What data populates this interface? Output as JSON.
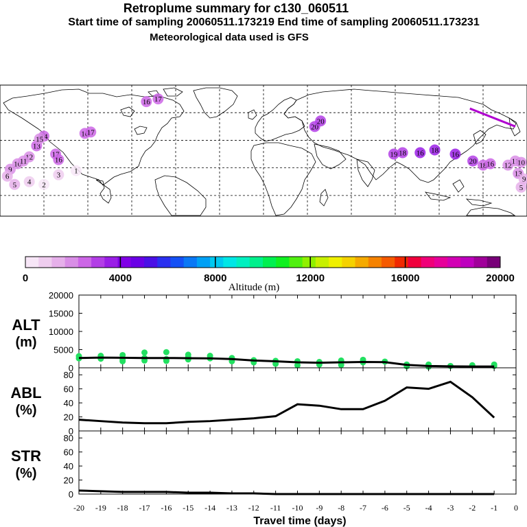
{
  "header": {
    "title": "Retroplume summary for c130_060511",
    "sampling": "Start time of sampling 20060511.173219     End time of sampling 20060511.173231",
    "met": "Meteorological data used is GFS"
  },
  "colorbar": {
    "label": "Altitude (m)",
    "ticks": [
      "0",
      "4000",
      "8000",
      "12000",
      "16000",
      "20000"
    ],
    "colors": [
      "#f7e6f7",
      "#efcdef",
      "#e6b0ea",
      "#d98ee6",
      "#cc66e6",
      "#b33ee6",
      "#9a1ee6",
      "#8000e6",
      "#6a00e6",
      "#4a10e6",
      "#2a30f0",
      "#1450f5",
      "#0a78f5",
      "#00a0f5",
      "#00c8f0",
      "#00e6e6",
      "#00f0c0",
      "#00f08c",
      "#00f050",
      "#10f020",
      "#50f010",
      "#90f000",
      "#c8f000",
      "#f0f000",
      "#f5d200",
      "#f5aa00",
      "#f58200",
      "#f55a00",
      "#f02800",
      "#f0003c",
      "#f00078",
      "#e6009a",
      "#d200b4",
      "#be00be",
      "#a0009a",
      "#780078"
    ]
  },
  "map": {
    "plumes": [
      {
        "label": "16",
        "lon": -122,
        "lat": 55,
        "alt": 2300
      },
      {
        "label": "17",
        "lon": -118,
        "lat": 56,
        "alt": 2400
      },
      {
        "label": "14",
        "lon": -150,
        "lat": 53,
        "alt": 2600
      },
      {
        "label": "13",
        "lon": -155,
        "lat": 46,
        "alt": 2400
      },
      {
        "label": "15",
        "lon": -153,
        "lat": 51,
        "alt": 2200
      },
      {
        "label": "17",
        "lon": -142,
        "lat": 40,
        "alt": 2500
      },
      {
        "label": "16",
        "lon": -140,
        "lat": 36,
        "alt": 2300
      },
      {
        "label": "12",
        "lon": -160,
        "lat": 38,
        "alt": 2200
      },
      {
        "label": "10",
        "lon": -168,
        "lat": 33,
        "alt": 2000
      },
      {
        "label": "9",
        "lon": -173,
        "lat": 29,
        "alt": 1900
      },
      {
        "label": "11",
        "lon": -164,
        "lat": 35,
        "alt": 2000
      },
      {
        "label": "6",
        "lon": -175,
        "lat": 24,
        "alt": 1500
      },
      {
        "label": "5",
        "lon": -170,
        "lat": 18,
        "alt": 1200
      },
      {
        "label": "4",
        "lon": -160,
        "lat": 20,
        "alt": 900
      },
      {
        "label": "3",
        "lon": -140,
        "lat": 25,
        "alt": 700
      },
      {
        "label": "2",
        "lon": -150,
        "lat": 18,
        "alt": 500
      },
      {
        "label": "1",
        "lon": -128,
        "lat": 28,
        "alt": 400
      },
      {
        "label": "16",
        "lon": -80,
        "lat": 78,
        "alt": 2300
      },
      {
        "label": "17",
        "lon": -72,
        "lat": 80,
        "alt": 2400
      },
      {
        "label": "20",
        "lon": 35,
        "lat": 60,
        "alt": 2900
      },
      {
        "label": "20",
        "lon": 39,
        "lat": 64,
        "alt": 2800
      },
      {
        "label": "19",
        "lon": 89,
        "lat": 40,
        "alt": 3200
      },
      {
        "label": "18",
        "lon": 95,
        "lat": 41,
        "alt": 3300
      },
      {
        "label": "16",
        "lon": 107,
        "lat": 41,
        "alt": 3400
      },
      {
        "label": "18",
        "lon": 117,
        "lat": 43,
        "alt": 3600
      },
      {
        "label": "16",
        "lon": 131,
        "lat": 40,
        "alt": 3600
      },
      {
        "label": "20",
        "lon": 143,
        "lat": 35,
        "alt": 2800
      },
      {
        "label": "18",
        "lon": 150,
        "lat": 32,
        "alt": 2700
      },
      {
        "label": "16",
        "lon": 155,
        "lat": 33,
        "alt": 2600
      },
      {
        "label": "12",
        "lon": 167,
        "lat": 32,
        "alt": 2200
      },
      {
        "label": "11",
        "lon": 172,
        "lat": 35,
        "alt": 2100
      },
      {
        "label": "10",
        "lon": 176,
        "lat": 34,
        "alt": 2000
      },
      {
        "label": "13",
        "lon": 174,
        "lat": 26,
        "alt": 1800
      },
      {
        "label": "9",
        "lon": 178,
        "lat": 22,
        "alt": 1600
      },
      {
        "label": "5",
        "lon": 176,
        "lat": 16,
        "alt": 1200
      }
    ]
  },
  "chart_data": [
    {
      "type": "scatter",
      "panel": "altitude",
      "ylabel_main": "ALT",
      "ylabel_unit": "(m)",
      "x": [
        -20,
        -19,
        -18,
        -17,
        -16,
        -15,
        -14,
        -13,
        -12,
        -11,
        -10,
        -9,
        -8,
        -7,
        -6,
        -5,
        -4,
        -3,
        -2,
        -1
      ],
      "values": [
        2700,
        2800,
        2750,
        2700,
        2700,
        2650,
        2600,
        2400,
        2000,
        1800,
        1500,
        1400,
        1500,
        1600,
        1550,
        800,
        500,
        400,
        350,
        350
      ],
      "scatter_points": [
        {
          "x": -20,
          "y": 2600
        },
        {
          "x": -20,
          "y": 3200
        },
        {
          "x": -19,
          "y": 3300
        },
        {
          "x": -19,
          "y": 2500
        },
        {
          "x": -18,
          "y": 3500
        },
        {
          "x": -18,
          "y": 2200
        },
        {
          "x": -18,
          "y": 1800
        },
        {
          "x": -17,
          "y": 4200
        },
        {
          "x": -17,
          "y": 2700
        },
        {
          "x": -17,
          "y": 2000
        },
        {
          "x": -16,
          "y": 4300
        },
        {
          "x": -16,
          "y": 2400
        },
        {
          "x": -16,
          "y": 1900
        },
        {
          "x": -15,
          "y": 3600
        },
        {
          "x": -15,
          "y": 2900
        },
        {
          "x": -15,
          "y": 2300
        },
        {
          "x": -14,
          "y": 3300
        },
        {
          "x": -14,
          "y": 2600
        },
        {
          "x": -13,
          "y": 2700
        },
        {
          "x": -13,
          "y": 1800
        },
        {
          "x": -12,
          "y": 2100
        },
        {
          "x": -12,
          "y": 1500
        },
        {
          "x": -11,
          "y": 1900
        },
        {
          "x": -11,
          "y": 1100
        },
        {
          "x": -10,
          "y": 1800
        },
        {
          "x": -10,
          "y": 700
        },
        {
          "x": -9,
          "y": 1600
        },
        {
          "x": -9,
          "y": 900
        },
        {
          "x": -8,
          "y": 2000
        },
        {
          "x": -8,
          "y": 800
        },
        {
          "x": -7,
          "y": 2200
        },
        {
          "x": -7,
          "y": 1500
        },
        {
          "x": -6,
          "y": 1700
        },
        {
          "x": -5,
          "y": 900
        },
        {
          "x": -5,
          "y": 400
        },
        {
          "x": -4,
          "y": 900
        },
        {
          "x": -4,
          "y": 300
        },
        {
          "x": -3,
          "y": 500
        },
        {
          "x": -2,
          "y": 700
        },
        {
          "x": -1,
          "y": 900
        },
        {
          "x": -1,
          "y": 500
        }
      ],
      "yticks": [
        "0",
        "5000",
        "10000",
        "15000",
        "20000"
      ],
      "ylim": [
        0,
        20000
      ]
    },
    {
      "type": "line",
      "panel": "abl",
      "ylabel_main": "ABL",
      "ylabel_unit": "(%)",
      "x": [
        -20,
        -19,
        -18,
        -17,
        -16,
        -15,
        -14,
        -13,
        -12,
        -11,
        -10,
        -9,
        -8,
        -7,
        -6,
        -5,
        -4,
        -3,
        -2,
        -1
      ],
      "values": [
        16,
        14,
        12,
        11,
        11,
        13,
        14,
        16,
        18,
        21,
        38,
        36,
        31,
        31,
        43,
        62,
        60,
        70,
        48,
        19
      ],
      "yticks": [
        "0",
        "20",
        "40",
        "60",
        "80"
      ],
      "ylim": [
        0,
        90
      ]
    },
    {
      "type": "line",
      "panel": "str",
      "ylabel_main": "STR",
      "ylabel_unit": "(%)",
      "x": [
        -20,
        -19,
        -18,
        -17,
        -16,
        -15,
        -14,
        -13,
        -12,
        -11,
        -10,
        -9,
        -8,
        -7,
        -6,
        -5,
        -4,
        -3,
        -2,
        -1
      ],
      "values": [
        5,
        4,
        3,
        3,
        3,
        2,
        2,
        1,
        1,
        0,
        0,
        0,
        0,
        0,
        0,
        0,
        0,
        0,
        0,
        0
      ],
      "yticks": [
        "0",
        "20",
        "40",
        "60",
        "80"
      ],
      "ylim": [
        0,
        90
      ]
    }
  ],
  "xaxis": {
    "label": "Travel time (days)",
    "ticks": [
      "-20",
      "-19",
      "-18",
      "-17",
      "-16",
      "-15",
      "-14",
      "-13",
      "-12",
      "-11",
      "-10",
      "-9",
      "-8",
      "-7",
      "-6",
      "-5",
      "-4",
      "-3",
      "-2",
      "-1",
      "0"
    ]
  }
}
